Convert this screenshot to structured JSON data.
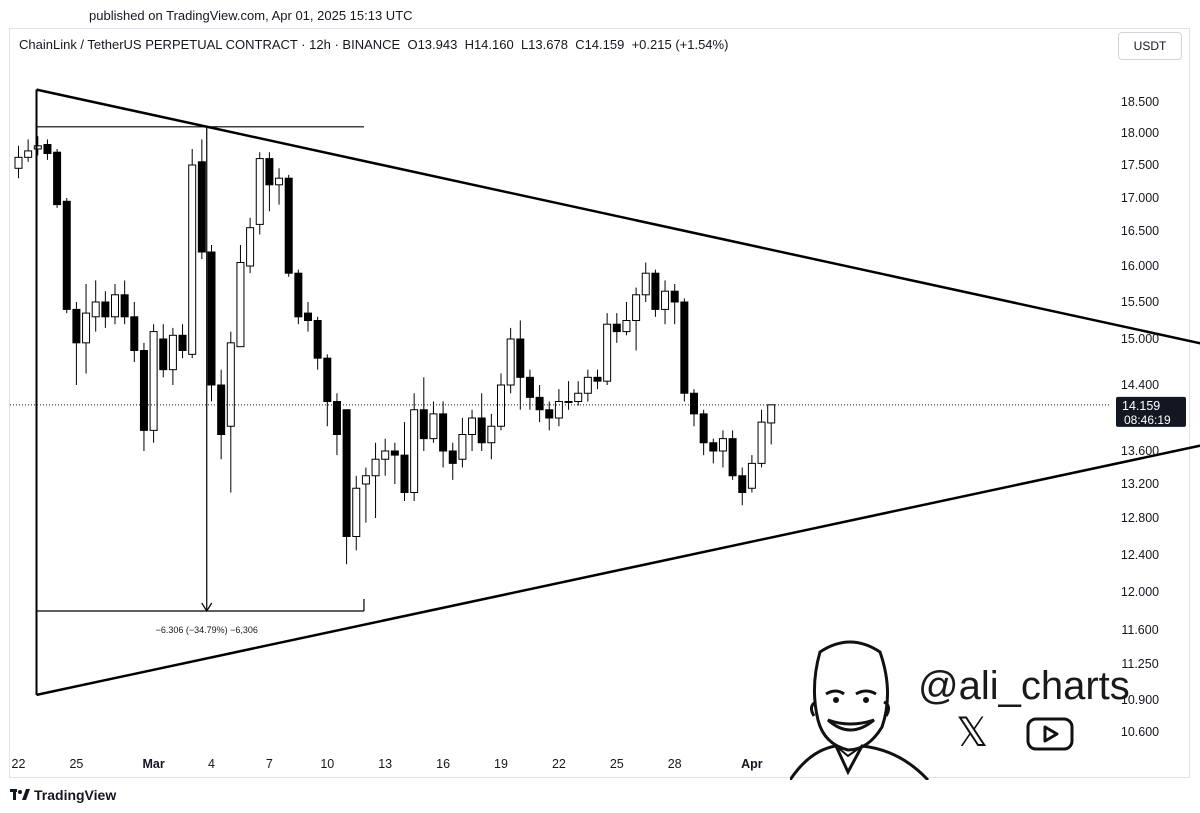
{
  "published": "published on TradingView.com, Apr 01, 2025 15:13 UTC",
  "header": {
    "symbol": "ChainLink / TetherUS PERPETUAL CONTRACT · 12h · BINANCE",
    "open": "O13.943",
    "high": "H14.160",
    "low": "L13.678",
    "close": "C14.159",
    "change": "+0.215 (+1.54%)"
  },
  "currency_button": "USDT",
  "price_label": {
    "price": "14.159",
    "countdown": "08:46:19"
  },
  "measure_label": "−6.306 (−34.79%) −6,306",
  "footer": {
    "brand": "TradingView",
    "logo_icon": "tradingview-logo-icon"
  },
  "branding": {
    "handle": "@ali_charts",
    "x_icon": "x-logo-icon",
    "youtube_icon": "youtube-icon",
    "portrait": "cartoon-portrait-icon"
  },
  "colors": {
    "bull_fill": "#ffffff",
    "bear_fill": "#000000",
    "line": "#000000"
  },
  "chart_data": {
    "type": "candlestick",
    "timeframe": "12h",
    "y_ticks": [
      {
        "label": "18.500",
        "v": 18.5
      },
      {
        "label": "18.000",
        "v": 18.0
      },
      {
        "label": "17.500",
        "v": 17.5
      },
      {
        "label": "17.000",
        "v": 17.0
      },
      {
        "label": "16.500",
        "v": 16.5
      },
      {
        "label": "16.000",
        "v": 16.0
      },
      {
        "label": "15.500",
        "v": 15.5
      },
      {
        "label": "15.000",
        "v": 15.0
      },
      {
        "label": "14.400",
        "v": 14.4
      },
      {
        "label": "13.600",
        "v": 13.6
      },
      {
        "label": "13.200",
        "v": 13.2
      },
      {
        "label": "12.800",
        "v": 12.8
      },
      {
        "label": "12.400",
        "v": 12.4
      },
      {
        "label": "12.000",
        "v": 12.0
      },
      {
        "label": "11.600",
        "v": 11.6
      },
      {
        "label": "11.250",
        "v": 11.25
      },
      {
        "label": "10.900",
        "v": 10.9
      },
      {
        "label": "10.600",
        "v": 10.6
      }
    ],
    "x_ticks": [
      {
        "label": "22",
        "i": 0
      },
      {
        "label": "25",
        "i": 6
      },
      {
        "label": "Mar",
        "i": 14
      },
      {
        "label": "4",
        "i": 20
      },
      {
        "label": "7",
        "i": 26
      },
      {
        "label": "10",
        "i": 32
      },
      {
        "label": "13",
        "i": 38
      },
      {
        "label": "16",
        "i": 44
      },
      {
        "label": "19",
        "i": 50
      },
      {
        "label": "22",
        "i": 56
      },
      {
        "label": "25",
        "i": 62
      },
      {
        "label": "28",
        "i": 68
      },
      {
        "label": "Apr",
        "i": 76
      }
    ],
    "candles": [
      [
        17.45,
        17.62,
        17.8,
        17.3
      ],
      [
        17.62,
        17.72,
        17.9,
        17.55
      ],
      [
        17.75,
        17.8,
        17.95,
        17.65
      ],
      [
        17.82,
        17.68,
        17.9,
        17.58
      ],
      [
        17.7,
        16.9,
        17.75,
        16.85
      ],
      [
        16.95,
        15.4,
        17.0,
        15.35
      ],
      [
        15.4,
        14.95,
        15.5,
        14.4
      ],
      [
        14.95,
        15.35,
        15.75,
        14.55
      ],
      [
        15.3,
        15.5,
        15.8,
        15.1
      ],
      [
        15.5,
        15.3,
        15.65,
        15.15
      ],
      [
        15.3,
        15.6,
        15.75,
        15.2
      ],
      [
        15.6,
        15.3,
        15.8,
        15.2
      ],
      [
        15.3,
        14.85,
        15.5,
        14.7
      ],
      [
        14.85,
        13.85,
        14.95,
        13.6
      ],
      [
        13.85,
        15.1,
        15.2,
        13.7
      ],
      [
        15.0,
        14.6,
        15.2,
        14.5
      ],
      [
        14.6,
        15.05,
        15.15,
        14.4
      ],
      [
        15.05,
        14.85,
        15.2,
        14.75
      ],
      [
        14.8,
        17.5,
        17.75,
        14.75
      ],
      [
        17.55,
        16.2,
        17.9,
        16.1
      ],
      [
        16.2,
        14.4,
        16.3,
        14.2
      ],
      [
        14.4,
        13.8,
        14.6,
        13.5
      ],
      [
        13.9,
        14.95,
        15.1,
        13.1
      ],
      [
        14.9,
        16.05,
        16.3,
        14.9
      ],
      [
        16.0,
        16.55,
        16.7,
        15.9
      ],
      [
        16.6,
        17.6,
        17.7,
        16.45
      ],
      [
        17.6,
        17.2,
        17.7,
        16.8
      ],
      [
        17.2,
        17.3,
        17.45,
        16.9
      ],
      [
        17.3,
        15.9,
        17.35,
        15.85
      ],
      [
        15.9,
        15.3,
        15.95,
        15.2
      ],
      [
        15.35,
        15.25,
        15.5,
        15.1
      ],
      [
        15.25,
        14.75,
        15.3,
        14.6
      ],
      [
        14.75,
        14.2,
        14.8,
        13.9
      ],
      [
        14.2,
        13.8,
        14.3,
        13.55
      ],
      [
        14.1,
        12.6,
        14.1,
        12.3
      ],
      [
        12.6,
        13.15,
        13.3,
        12.45
      ],
      [
        13.2,
        13.3,
        13.4,
        12.75
      ],
      [
        13.3,
        13.5,
        13.7,
        12.8
      ],
      [
        13.5,
        13.6,
        13.75,
        13.3
      ],
      [
        13.6,
        13.55,
        13.7,
        13.2
      ],
      [
        13.55,
        13.1,
        13.95,
        13.0
      ],
      [
        13.1,
        14.1,
        14.3,
        13.0
      ],
      [
        14.1,
        13.75,
        14.5,
        13.6
      ],
      [
        13.75,
        14.05,
        14.2,
        13.7
      ],
      [
        14.05,
        13.6,
        14.2,
        13.4
      ],
      [
        13.6,
        13.45,
        13.7,
        13.25
      ],
      [
        13.5,
        13.8,
        14.0,
        13.4
      ],
      [
        13.8,
        14.0,
        14.1,
        13.6
      ],
      [
        14.0,
        13.7,
        14.3,
        13.6
      ],
      [
        13.7,
        13.9,
        14.05,
        13.5
      ],
      [
        13.9,
        14.4,
        14.55,
        13.85
      ],
      [
        14.4,
        15.0,
        15.15,
        14.3
      ],
      [
        15.0,
        14.5,
        15.25,
        14.1
      ],
      [
        14.5,
        14.25,
        14.6,
        14.1
      ],
      [
        14.25,
        14.1,
        14.4,
        13.95
      ],
      [
        14.1,
        14.0,
        14.2,
        13.85
      ],
      [
        14.0,
        14.2,
        14.35,
        13.9
      ],
      [
        14.2,
        14.2,
        14.45,
        14.1
      ],
      [
        14.2,
        14.3,
        14.45,
        14.15
      ],
      [
        14.3,
        14.5,
        14.6,
        14.2
      ],
      [
        14.5,
        14.45,
        14.6,
        14.35
      ],
      [
        14.45,
        15.2,
        15.35,
        14.4
      ],
      [
        15.2,
        15.1,
        15.35,
        14.95
      ],
      [
        15.1,
        15.25,
        15.5,
        15.05
      ],
      [
        15.25,
        15.6,
        15.7,
        14.85
      ],
      [
        15.6,
        15.9,
        16.05,
        15.5
      ],
      [
        15.9,
        15.4,
        15.95,
        15.3
      ],
      [
        15.4,
        15.65,
        15.8,
        15.2
      ],
      [
        15.65,
        15.5,
        15.75,
        15.2
      ],
      [
        15.5,
        14.3,
        15.55,
        14.2
      ],
      [
        14.3,
        14.05,
        14.35,
        13.9
      ],
      [
        14.05,
        13.7,
        14.1,
        13.55
      ],
      [
        13.7,
        13.6,
        13.75,
        13.45
      ],
      [
        13.6,
        13.75,
        13.85,
        13.4
      ],
      [
        13.75,
        13.3,
        13.85,
        13.25
      ],
      [
        13.3,
        13.1,
        13.4,
        12.95
      ],
      [
        13.15,
        13.45,
        13.55,
        13.1
      ],
      [
        13.45,
        13.95,
        14.1,
        13.4
      ],
      [
        13.94,
        14.16,
        14.16,
        13.68
      ]
    ],
    "last_price": 14.159,
    "triangle": {
      "upper": [
        [
          0,
          18.7
        ],
        [
          147,
          14.28
        ]
      ],
      "lower": [
        [
          0,
          10.95
        ],
        [
          147,
          14.28
        ]
      ],
      "apex_index": 147
    },
    "measure": {
      "top_price": 18.1,
      "bottom_price": 11.8,
      "top_from_index": 0,
      "top_to_index": 53,
      "bottom_from_index": 0,
      "bottom_to_index": 53,
      "arrow_index": 25,
      "right_index": 53
    }
  }
}
